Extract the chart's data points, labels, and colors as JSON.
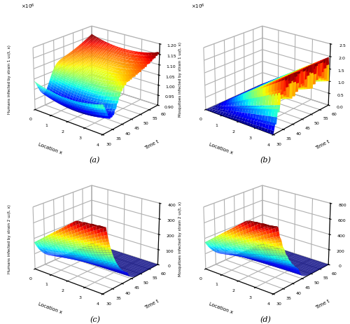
{
  "fig_width": 5.0,
  "fig_height": 4.64,
  "dpi": 100,
  "background_color": "white",
  "subplots": [
    {
      "label": "(a)",
      "ylabel": "Humans infected by strain 1 u₁(t, x)",
      "xlabel": "Location x",
      "tlabel": "Time t",
      "type": "u1",
      "zlim": [
        900000.0,
        1200000.0
      ],
      "zticks": [
        0.9,
        0.95,
        1.0,
        1.05,
        1.1,
        1.15,
        1.2
      ],
      "scale": 1000000.0
    },
    {
      "label": "(b)",
      "ylabel": "Mosquitoes infected by strain 1 u₄(t, x)",
      "xlabel": "Location x",
      "tlabel": "Time t",
      "type": "u4",
      "zlim": [
        0,
        2500000.0
      ],
      "zticks": [
        0,
        0.5,
        1.0,
        1.5,
        2.0,
        2.5
      ],
      "scale": 1000000.0
    },
    {
      "label": "(c)",
      "ylabel": "Humans infected by strain 2 u₂(t, x)",
      "xlabel": "Location x",
      "tlabel": "Time t",
      "type": "u2",
      "zlim": [
        0,
        400
      ],
      "zticks": [
        0,
        100,
        200,
        300,
        400
      ],
      "scale": 1
    },
    {
      "label": "(d)",
      "ylabel": "Mosquitoes infected by strain 2 u₅(t, x)",
      "xlabel": "Location x",
      "tlabel": "Time t",
      "type": "u5",
      "zlim": [
        0,
        800
      ],
      "zticks": [
        0,
        200,
        400,
        600,
        800
      ],
      "scale": 1
    }
  ],
  "cmap": "jet",
  "elev": 22,
  "azim": -50,
  "Nx": 25,
  "Nt": 80,
  "x_min": 0,
  "x_max": 4,
  "t_min": 30,
  "t_max": 60
}
